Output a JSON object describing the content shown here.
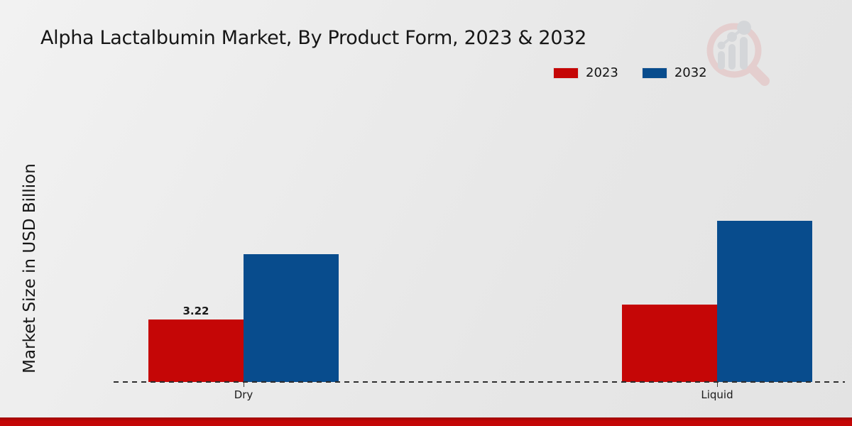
{
  "chart_data": {
    "type": "bar",
    "title": "Alpha Lactalbumin Market, By Product Form, 2023 & 2032",
    "ylabel": "Market Size in USD Billion",
    "xlabel": "",
    "categories": [
      "Dry",
      "Liquid"
    ],
    "series": [
      {
        "name": "2023",
        "color": "#c50606",
        "values": [
          3.22,
          4.0
        ],
        "value_labels": [
          "3.22",
          ""
        ]
      },
      {
        "name": "2032",
        "color": "#084c8d",
        "values": [
          6.6,
          8.3
        ],
        "value_labels": [
          "",
          ""
        ]
      }
    ],
    "ylim": [
      0,
      10
    ],
    "grid": false,
    "legend_position": "top-right",
    "baseline_style": "dashed",
    "accent_bar_color": "#c40606"
  },
  "watermark": {
    "icon": "magnifier-bar-chart-logo"
  }
}
